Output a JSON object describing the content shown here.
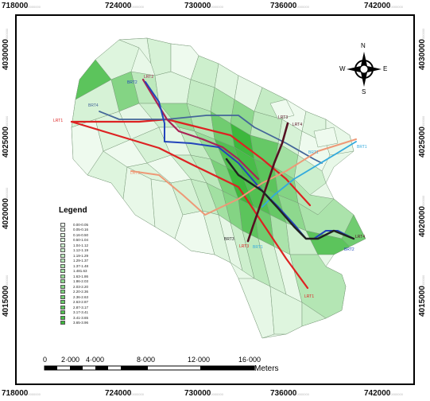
{
  "coordinates": {
    "top": [
      {
        "main": "718000",
        "sub": "0000000"
      },
      {
        "main": "724000",
        "sub": "0000000"
      },
      {
        "main": "730000",
        "sub": "0000000"
      },
      {
        "main": "736000",
        "sub": "0000000"
      },
      {
        "main": "742000",
        "sub": "0000000"
      }
    ],
    "bottom": [
      {
        "main": "718000",
        "sub": "0000000"
      },
      {
        "main": "724000",
        "sub": "0000000"
      },
      {
        "main": "730000",
        "sub": "0000000"
      },
      {
        "main": "736000",
        "sub": "0000000"
      },
      {
        "main": "742000",
        "sub": "0000000"
      }
    ],
    "left": [
      {
        "main": "4030000",
        "sub": "000000"
      },
      {
        "main": "4025000",
        "sub": "000000"
      },
      {
        "main": "4020000",
        "sub": "000000"
      },
      {
        "main": "4015000",
        "sub": "000000"
      }
    ],
    "right": [
      {
        "main": "4030000",
        "sub": "000000"
      },
      {
        "main": "4025000",
        "sub": "000000"
      },
      {
        "main": "4020000",
        "sub": "000000"
      },
      {
        "main": "4015000",
        "sub": "000000"
      }
    ]
  },
  "compass": {
    "n": "N",
    "s": "S",
    "e": "E",
    "w": "W"
  },
  "legend": {
    "title": "Legend",
    "items": [
      {
        "label": "0.00-0.05",
        "color": "#eefaee"
      },
      {
        "label": "0.05-0.16",
        "color": "#e6f7e6"
      },
      {
        "label": "0.16-0.50",
        "color": "#def5de"
      },
      {
        "label": "0.50-1.04",
        "color": "#d6f2d6"
      },
      {
        "label": "1.04-1.12",
        "color": "#cdefcd"
      },
      {
        "label": "1.12-1.19",
        "color": "#c5ecc5"
      },
      {
        "label": "1.19-1.29",
        "color": "#bde9bd"
      },
      {
        "label": "1.29-1.37",
        "color": "#b4e6b4"
      },
      {
        "label": "1.37-1.48",
        "color": "#abe3ab"
      },
      {
        "label": "1.481.63",
        "color": "#a2e0a2"
      },
      {
        "label": "1.63-1.86",
        "color": "#98dc98"
      },
      {
        "label": "1.86-2.03",
        "color": "#8ed88e"
      },
      {
        "label": "2.03-2.20",
        "color": "#84d484"
      },
      {
        "label": "2.20-2.36",
        "color": "#7ad07a"
      },
      {
        "label": "2.36-2.63",
        "color": "#70cc70"
      },
      {
        "label": "2.63-2.87",
        "color": "#66c866"
      },
      {
        "label": "2.87-3.17",
        "color": "#5cc45c"
      },
      {
        "label": "3.17-3.41",
        "color": "#52c052"
      },
      {
        "label": "3.41-3.65",
        "color": "#48bc48"
      },
      {
        "label": "3.65-3.96",
        "color": "#3db83d"
      }
    ]
  },
  "scale": {
    "ticks": [
      "0",
      "2·000",
      "4·000",
      "8·000",
      "12·000",
      "16·000"
    ],
    "unit": "Meters"
  },
  "routes": {
    "lrt1_west": "LRT1",
    "lrt1_south": "LRT1",
    "lrt2": "LRT2",
    "lrt3_north": "LRT3",
    "lrt3_south": "LRT3",
    "lrt4_north": "LRT4",
    "lrt4_east": "LRT4",
    "brt1_east": "BRT1",
    "brt1_mid": "BRT1",
    "brt1_south": "BRT1",
    "brt2_north": "BRT2",
    "brt2_south": "BRT2",
    "brt3_north": "BRT3",
    "brt3_south": "BRT3",
    "brt4": "BRT4",
    "lrt_west_pale": "LRT3"
  },
  "colors": {
    "lrt1": "#dd2222",
    "lrt2": "#aa2255",
    "lrt3": "#ee9977",
    "lrt4": "#551122",
    "brt1": "#33aadd",
    "brt2": "#2244bb",
    "brt3": "#222222",
    "brt4": "#446699"
  }
}
